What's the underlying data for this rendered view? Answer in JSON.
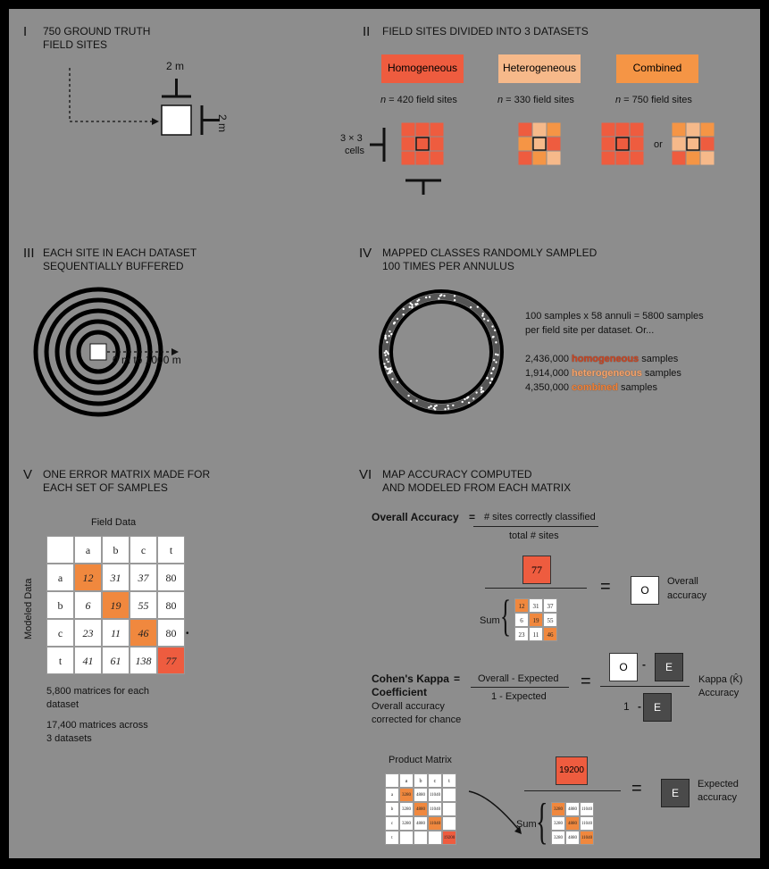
{
  "colors": {
    "homogeneous": "#ee5c3f",
    "heterogeneous": "#f6b98a",
    "combined": "#f59545",
    "highlight": "#f0883e",
    "panel_bg": "#8d8d8d"
  },
  "p1": {
    "num": "I",
    "title1": "750 GROUND TRUTH",
    "title2": "FIELD SITES",
    "dim_top": "2 m",
    "dim_side": "2 m"
  },
  "p2": {
    "num": "II",
    "title": "FIELD SITES DIVIDED INTO 3 DATASETS",
    "boxes": [
      {
        "label": "Homogeneous",
        "n": "n",
        "count": " = 420 field sites"
      },
      {
        "label": "Heterogeneous",
        "n": "n",
        "count": " = 330 field sites"
      },
      {
        "label": "Combined",
        "n": "n",
        "count": " = 750 field sites"
      }
    ],
    "cells1": "3 × 3",
    "cells2": "cells",
    "or": "or"
  },
  "p3": {
    "num": "III",
    "title1": "EACH SITE IN EACH DATASET",
    "title2": "SEQUENTIALLY BUFFERED",
    "range": "0 m to 1000 m"
  },
  "p4": {
    "num": "IV",
    "title1": "MAPPED CLASSES RANDOMLY SAMPLED",
    "title2": "100 TIMES PER ANNULUS",
    "desc1": "100 samples x 58 annuli = 5800 samples",
    "desc2": "per field site per dataset. Or...",
    "rows": [
      {
        "n": "2,436,000",
        "w": "homogeneous",
        "s": "samples"
      },
      {
        "n": "1,914,000",
        "w": "heterogeneous",
        "s": "samples"
      },
      {
        "n": "4,350,000",
        "w": "combined",
        "s": "samples"
      }
    ]
  },
  "p5": {
    "num": "V",
    "title1": "ONE ERROR MATRIX MADE FOR",
    "title2": "EACH SET OF SAMPLES",
    "field_label": "Field Data",
    "model_label": "Modeled Data",
    "header": [
      "",
      "a",
      "b",
      "c",
      "t"
    ],
    "rows": [
      [
        "a",
        "12",
        "31",
        "37",
        "80"
      ],
      [
        "b",
        "6",
        "19",
        "55",
        "80"
      ],
      [
        "c",
        "23",
        "11",
        "46",
        "80"
      ],
      [
        "t",
        "41",
        "61",
        "138",
        "77"
      ]
    ],
    "note1a": "5,800 matrices for each",
    "note1b": "dataset",
    "note2a": "17,400 matrices across",
    "note2b": "3 datasets"
  },
  "p6": {
    "num": "VI",
    "title1": "MAP ACCURACY COMPUTED",
    "title2": "AND MODELED FROM EACH MATRIX",
    "oa_label": "Overall Accuracy",
    "oa_num": "# sites correctly classified",
    "oa_den": "total # sites",
    "sum_value": "77",
    "sum_label": "Sum",
    "o": "O",
    "overall1": "Overall",
    "overall2": "accuracy",
    "mini_rows": [
      [
        "12",
        "31",
        "37"
      ],
      [
        "6",
        "19",
        "55"
      ],
      [
        "23",
        "11",
        "46"
      ]
    ],
    "kappa1": "Cohen's Kappa",
    "kappa2": "Coefficient",
    "kappa3": "Overall accuracy",
    "kappa4": "corrected for chance",
    "k_num": "Overall - Expected",
    "k_den": "1 - Expected",
    "e": "E",
    "one": "1",
    "kappa_acc1": "Kappa (K̂)",
    "kappa_acc2": "Accuracy",
    "product_label": "Product Matrix",
    "pm_header": [
      "",
      "a",
      "b",
      "c",
      "t"
    ],
    "pm_rows": [
      [
        "a",
        "3280",
        "4880",
        "11040",
        ""
      ],
      [
        "b",
        "3280",
        "4880",
        "11040",
        ""
      ],
      [
        "c",
        "3280",
        "4880",
        "11040",
        ""
      ],
      [
        "t",
        "",
        "",
        "",
        "19200"
      ]
    ],
    "prod_sum": "19200",
    "sum2_label": "Sum",
    "sum2_rows": [
      [
        "3280",
        "4880",
        "11040"
      ],
      [
        "3280",
        "4880",
        "11040"
      ],
      [
        "3280",
        "4880",
        "11040"
      ]
    ],
    "expected1": "Expected",
    "expected2": "accuracy",
    "eq": "="
  }
}
